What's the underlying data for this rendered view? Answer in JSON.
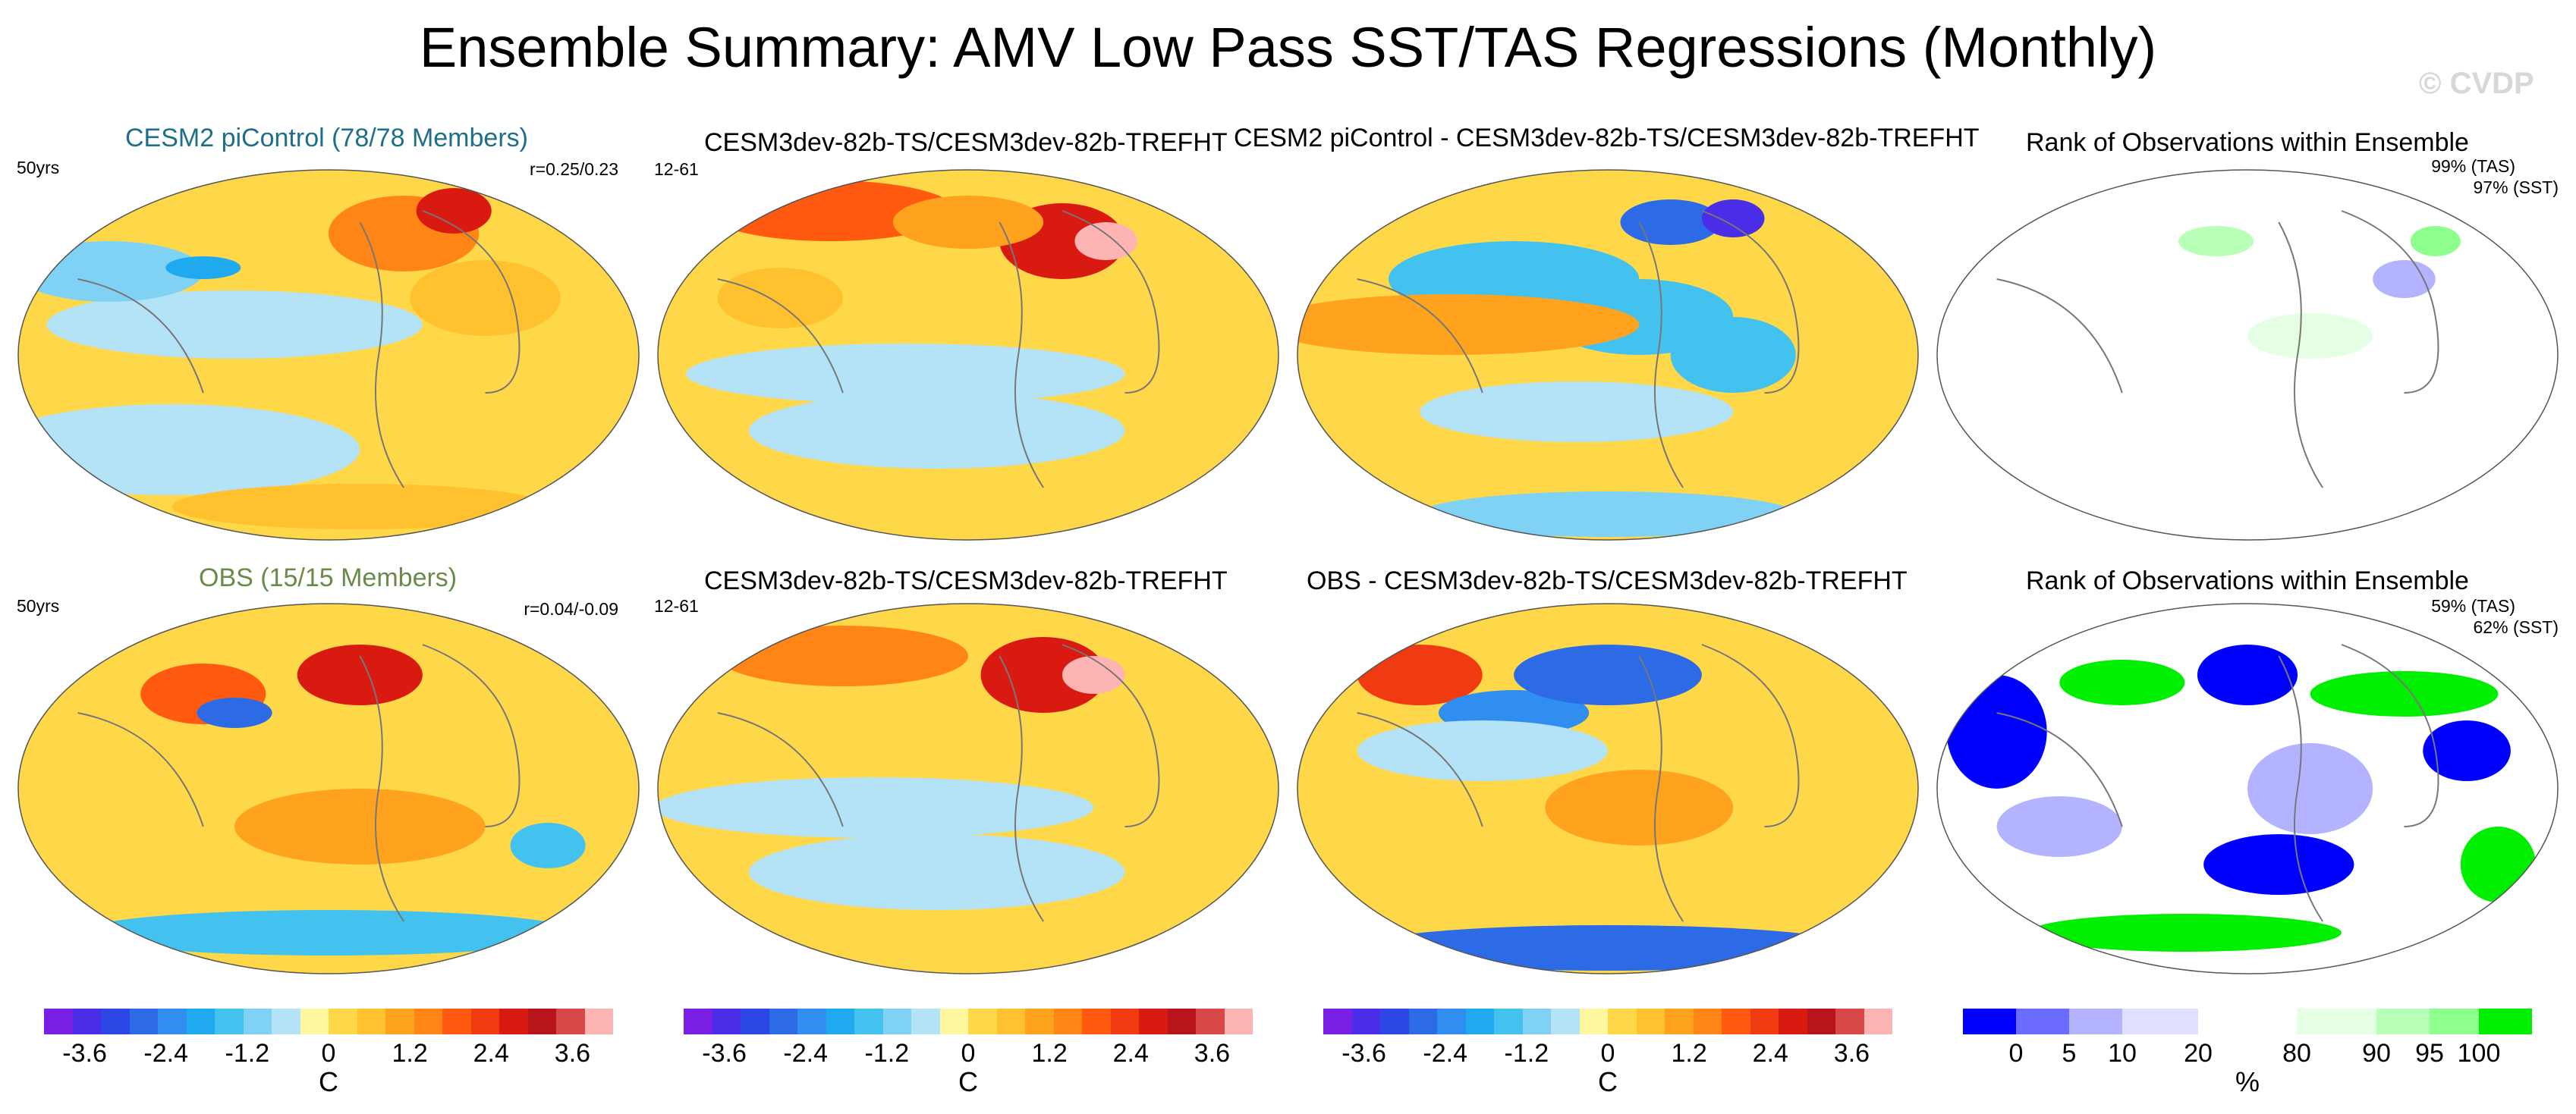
{
  "title": "Ensemble Summary: AMV Low Pass SST/TAS Regressions (Monthly)",
  "watermark": "© CVDP",
  "colors": {
    "cesm_title": "#1f6f8b",
    "obs_title": "#6a8a4a",
    "diverging": [
      "#7a1fe6",
      "#4a2de6",
      "#2d46e6",
      "#2d6be6",
      "#2f8ef0",
      "#1faaf0",
      "#43c2f0",
      "#7fd2f4",
      "#b4e2f6",
      "#fff6a0",
      "#ffd84a",
      "#ffc12e",
      "#ffa21e",
      "#ff8516",
      "#ff5a10",
      "#f03a12",
      "#d81a10",
      "#b8141c",
      "#d84848",
      "#ffb4b4"
    ],
    "rank": [
      "#0000ff",
      "#6b6bff",
      "#b3b3ff",
      "#e0e0ff",
      "#ffffff",
      "#e4ffe4",
      "#b8ffb8",
      "#8cff8c",
      "#00ee00"
    ]
  },
  "panels": [
    {
      "title": "CESM2 piControl (78/78 Members)",
      "left_label": "50yrs",
      "right_label": "r=0.25/0.23"
    },
    {
      "title": "CESM3dev-82b-TS/CESM3dev-82b-TREFHT",
      "left_label": "12-61"
    },
    {
      "title": "CESM2 piControl - CESM3dev-82b-TS/CESM3dev-82b-TREFHT"
    },
    {
      "title": "Rank of Observations within Ensemble",
      "right_label_1": "99% (TAS)",
      "right_label_2": "97% (SST)"
    },
    {
      "title": "OBS (15/15 Members)",
      "left_label": "50yrs",
      "right_label": "r=0.04/-0.09"
    },
    {
      "title": "CESM3dev-82b-TS/CESM3dev-82b-TREFHT",
      "left_label": "12-61"
    },
    {
      "title": "OBS - CESM3dev-82b-TS/CESM3dev-82b-TREFHT"
    },
    {
      "title": "Rank of Observations within Ensemble",
      "right_label_1": "59% (TAS)",
      "right_label_2": "62% (SST)"
    }
  ],
  "colorbars": {
    "diverging": {
      "ticks": [
        "-3.6",
        "-2.4",
        "-1.2",
        "0",
        "1.2",
        "2.4",
        "3.6"
      ],
      "label": "C"
    },
    "rank": {
      "ticks": [
        "0",
        "5",
        "10",
        "20",
        "80",
        "90",
        "95",
        "100"
      ],
      "label": "%"
    }
  },
  "chart_data": [
    {
      "type": "heatmap",
      "title": "CESM2 piControl (78/78 Members)",
      "units": "C",
      "range": [
        -4.2,
        4.2
      ],
      "period": "50yrs",
      "pattern_correlation": "r=0.25/0.23"
    },
    {
      "type": "heatmap",
      "title": "CESM3dev-82b-TS/CESM3dev-82b-TREFHT",
      "units": "C",
      "range": [
        -4.2,
        4.2
      ],
      "period": "12-61"
    },
    {
      "type": "heatmap",
      "title": "CESM2 piControl - CESM3dev-82b-TS/CESM3dev-82b-TREFHT",
      "units": "C",
      "range": [
        -4.2,
        4.2
      ]
    },
    {
      "type": "heatmap",
      "title": "Rank of Observations within Ensemble",
      "units": "%",
      "levels": [
        0,
        5,
        10,
        20,
        80,
        90,
        95,
        100
      ],
      "rank_TAS": "99%",
      "rank_SST": "97%"
    },
    {
      "type": "heatmap",
      "title": "OBS (15/15 Members)",
      "units": "C",
      "range": [
        -4.2,
        4.2
      ],
      "period": "50yrs",
      "pattern_correlation": "r=0.04/-0.09"
    },
    {
      "type": "heatmap",
      "title": "CESM3dev-82b-TS/CESM3dev-82b-TREFHT",
      "units": "C",
      "range": [
        -4.2,
        4.2
      ],
      "period": "12-61"
    },
    {
      "type": "heatmap",
      "title": "OBS - CESM3dev-82b-TS/CESM3dev-82b-TREFHT",
      "units": "C",
      "range": [
        -4.2,
        4.2
      ]
    },
    {
      "type": "heatmap",
      "title": "Rank of Observations within Ensemble",
      "units": "%",
      "levels": [
        0,
        5,
        10,
        20,
        80,
        90,
        95,
        100
      ],
      "rank_TAS": "59%",
      "rank_SST": "62%"
    }
  ]
}
